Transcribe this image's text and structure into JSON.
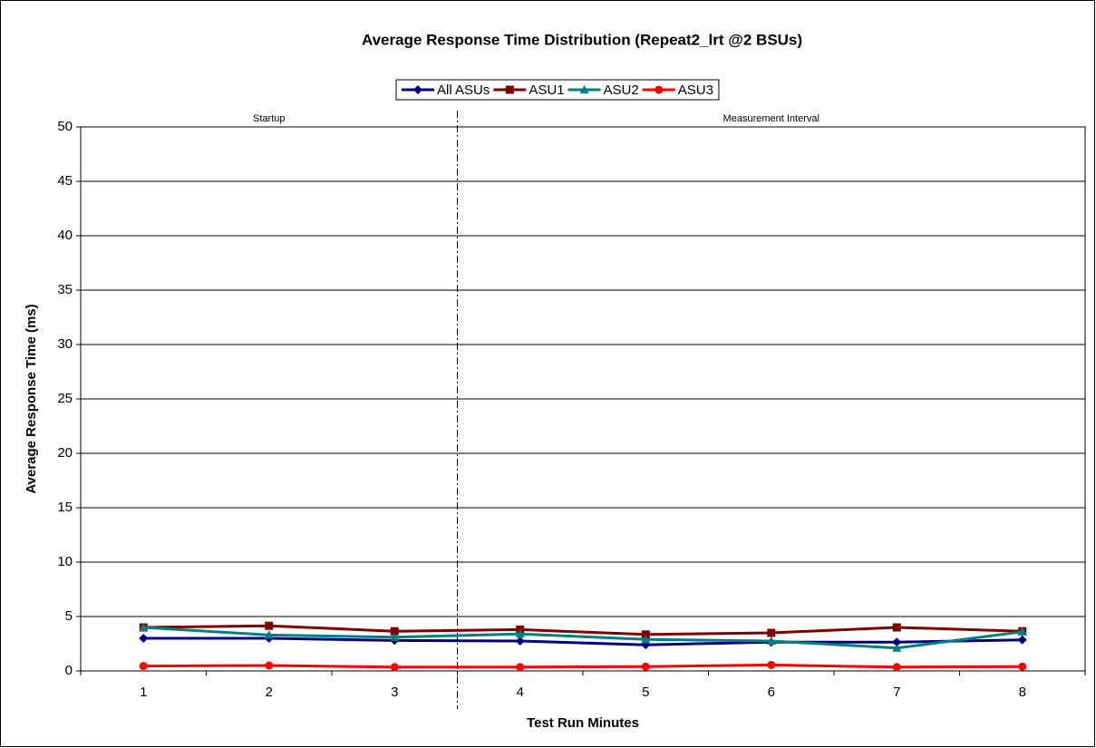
{
  "chart_data": {
    "type": "line",
    "title": "Average Response Time Distribution (Repeat2_lrt @2 BSUs)",
    "x_label": "Test Run Minutes",
    "y_label": "Average Response Time (ms)",
    "annotations": [
      "Startup",
      "Measurement Interval"
    ],
    "categories": [
      1,
      2,
      3,
      4,
      5,
      6,
      7,
      8
    ],
    "series": [
      {
        "name": "All ASUs",
        "color": "#000080",
        "marker": "diamond",
        "values": [
          3.0,
          3.0,
          2.8,
          2.75,
          2.4,
          2.65,
          2.65,
          2.85
        ]
      },
      {
        "name": "ASU1",
        "color": "#800000",
        "marker": "square",
        "values": [
          4.0,
          4.15,
          3.65,
          3.8,
          3.35,
          3.5,
          4.0,
          3.65
        ]
      },
      {
        "name": "ASU2",
        "color": "#008080",
        "marker": "triangle",
        "values": [
          4.0,
          3.3,
          3.1,
          3.4,
          2.9,
          2.75,
          2.1,
          3.6
        ]
      },
      {
        "name": "ASU3",
        "color": "#ff0000",
        "marker": "circle",
        "values": [
          0.45,
          0.5,
          0.35,
          0.35,
          0.4,
          0.55,
          0.35,
          0.4
        ]
      }
    ],
    "ylim": [
      0,
      50
    ],
    "yticks": [
      0,
      5,
      10,
      15,
      20,
      25,
      30,
      35,
      40,
      45,
      50
    ],
    "grid": true,
    "legend": "top"
  }
}
